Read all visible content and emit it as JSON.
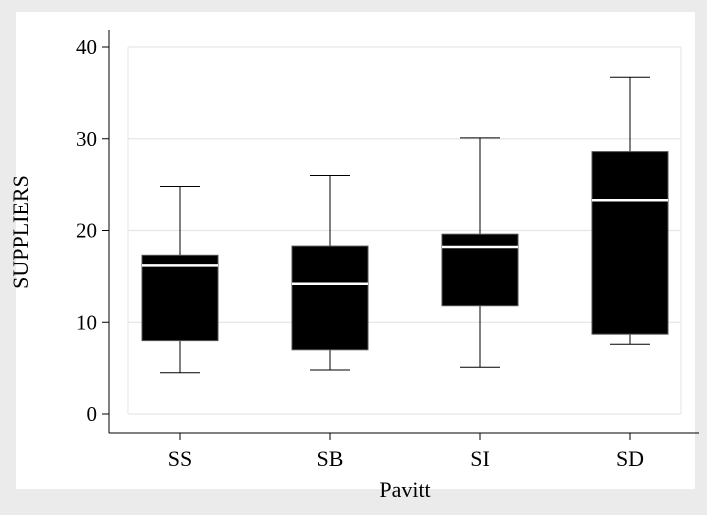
{
  "chart_data": {
    "type": "box",
    "title": "",
    "xlabel": "Pavitt",
    "ylabel": "SUPPLIERS",
    "ylim": [
      0,
      40
    ],
    "yticks": [
      0,
      10,
      20,
      30,
      40
    ],
    "categories": [
      "SS",
      "SB",
      "SI",
      "SD"
    ],
    "boxes": [
      {
        "category": "SS",
        "min": 4.5,
        "q1": 8.0,
        "median": 16.2,
        "q3": 17.3,
        "max": 24.8
      },
      {
        "category": "SB",
        "min": 4.8,
        "q1": 7.0,
        "median": 14.2,
        "q3": 18.3,
        "max": 26.0
      },
      {
        "category": "SI",
        "min": 5.1,
        "q1": 11.8,
        "median": 18.2,
        "q3": 19.6,
        "max": 30.1
      },
      {
        "category": "SD",
        "min": 7.6,
        "q1": 8.7,
        "median": 23.3,
        "q3": 28.6,
        "max": 36.7
      }
    ],
    "grid": true,
    "colors": {
      "outer_background": "#ebebeb",
      "plot_background": "#ffffff",
      "box_fill": "#000000",
      "median_line": "#ffffff",
      "whisker": "#000000",
      "grid": "#e6e6e6"
    }
  }
}
